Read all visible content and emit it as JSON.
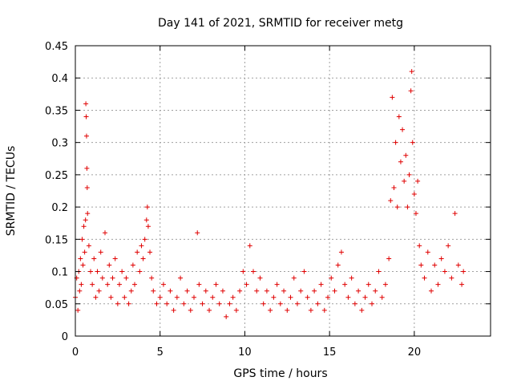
{
  "chart_data": {
    "type": "scatter",
    "title": "Day 141 of 2021, SRMTID for receiver metg",
    "xlabel": "GPS time / hours",
    "ylabel": "SRMTID / TECUs",
    "xlim": [
      0,
      24.5
    ],
    "ylim": [
      0,
      0.45
    ],
    "xticks": [
      0,
      5,
      10,
      15,
      20
    ],
    "xtick_labels": [
      "0",
      "5",
      "10",
      "15",
      "20"
    ],
    "yticks": [
      0,
      0.05,
      0.1,
      0.15,
      0.2,
      0.25,
      0.3,
      0.35,
      0.4,
      0.45
    ],
    "ytick_labels": [
      "0",
      "0.05",
      "0.1",
      "0.15",
      "0.2",
      "0.25",
      "0.3",
      "0.35",
      "0.4",
      "0.45"
    ],
    "grid": true,
    "marker": "+",
    "color": "#e00000",
    "series": [
      {
        "name": "SRMTID",
        "points": [
          [
            0.0,
            0.06
          ],
          [
            0.08,
            0.09
          ],
          [
            0.15,
            0.04
          ],
          [
            0.2,
            0.1
          ],
          [
            0.25,
            0.07
          ],
          [
            0.3,
            0.12
          ],
          [
            0.35,
            0.08
          ],
          [
            0.4,
            0.15
          ],
          [
            0.45,
            0.11
          ],
          [
            0.5,
            0.17
          ],
          [
            0.55,
            0.13
          ],
          [
            0.6,
            0.18
          ],
          [
            0.62,
            0.36
          ],
          [
            0.64,
            0.34
          ],
          [
            0.66,
            0.31
          ],
          [
            0.68,
            0.26
          ],
          [
            0.7,
            0.23
          ],
          [
            0.72,
            0.19
          ],
          [
            0.8,
            0.14
          ],
          [
            0.9,
            0.1
          ],
          [
            1.0,
            0.08
          ],
          [
            1.1,
            0.12
          ],
          [
            1.2,
            0.06
          ],
          [
            1.3,
            0.1
          ],
          [
            1.4,
            0.07
          ],
          [
            1.5,
            0.13
          ],
          [
            1.6,
            0.09
          ],
          [
            1.75,
            0.16
          ],
          [
            1.9,
            0.08
          ],
          [
            2.0,
            0.11
          ],
          [
            2.1,
            0.06
          ],
          [
            2.2,
            0.09
          ],
          [
            2.35,
            0.12
          ],
          [
            2.5,
            0.05
          ],
          [
            2.6,
            0.08
          ],
          [
            2.75,
            0.1
          ],
          [
            2.9,
            0.06
          ],
          [
            3.0,
            0.09
          ],
          [
            3.15,
            0.05
          ],
          [
            3.3,
            0.07
          ],
          [
            3.4,
            0.11
          ],
          [
            3.5,
            0.08
          ],
          [
            3.65,
            0.13
          ],
          [
            3.8,
            0.1
          ],
          [
            3.9,
            0.14
          ],
          [
            4.0,
            0.12
          ],
          [
            4.1,
            0.15
          ],
          [
            4.2,
            0.18
          ],
          [
            4.25,
            0.2
          ],
          [
            4.3,
            0.17
          ],
          [
            4.4,
            0.13
          ],
          [
            4.5,
            0.09
          ],
          [
            4.6,
            0.07
          ],
          [
            4.8,
            0.05
          ],
          [
            5.0,
            0.06
          ],
          [
            5.2,
            0.08
          ],
          [
            5.4,
            0.05
          ],
          [
            5.6,
            0.07
          ],
          [
            5.8,
            0.04
          ],
          [
            6.0,
            0.06
          ],
          [
            6.2,
            0.09
          ],
          [
            6.4,
            0.05
          ],
          [
            6.6,
            0.07
          ],
          [
            6.8,
            0.04
          ],
          [
            7.0,
            0.06
          ],
          [
            7.2,
            0.16
          ],
          [
            7.3,
            0.08
          ],
          [
            7.5,
            0.05
          ],
          [
            7.7,
            0.07
          ],
          [
            7.9,
            0.04
          ],
          [
            8.1,
            0.06
          ],
          [
            8.3,
            0.08
          ],
          [
            8.5,
            0.05
          ],
          [
            8.7,
            0.07
          ],
          [
            8.9,
            0.03
          ],
          [
            9.1,
            0.05
          ],
          [
            9.3,
            0.06
          ],
          [
            9.5,
            0.04
          ],
          [
            9.7,
            0.07
          ],
          [
            9.9,
            0.1
          ],
          [
            10.1,
            0.08
          ],
          [
            10.3,
            0.14
          ],
          [
            10.5,
            0.1
          ],
          [
            10.7,
            0.07
          ],
          [
            10.9,
            0.09
          ],
          [
            11.1,
            0.05
          ],
          [
            11.3,
            0.07
          ],
          [
            11.5,
            0.04
          ],
          [
            11.7,
            0.06
          ],
          [
            11.9,
            0.08
          ],
          [
            12.1,
            0.05
          ],
          [
            12.3,
            0.07
          ],
          [
            12.5,
            0.04
          ],
          [
            12.7,
            0.06
          ],
          [
            12.9,
            0.09
          ],
          [
            13.1,
            0.05
          ],
          [
            13.3,
            0.07
          ],
          [
            13.5,
            0.1
          ],
          [
            13.7,
            0.06
          ],
          [
            13.9,
            0.04
          ],
          [
            14.1,
            0.07
          ],
          [
            14.3,
            0.05
          ],
          [
            14.5,
            0.08
          ],
          [
            14.7,
            0.04
          ],
          [
            14.9,
            0.06
          ],
          [
            15.1,
            0.09
          ],
          [
            15.3,
            0.07
          ],
          [
            15.5,
            0.11
          ],
          [
            15.7,
            0.13
          ],
          [
            15.9,
            0.08
          ],
          [
            16.1,
            0.06
          ],
          [
            16.3,
            0.09
          ],
          [
            16.5,
            0.05
          ],
          [
            16.7,
            0.07
          ],
          [
            16.9,
            0.04
          ],
          [
            17.1,
            0.06
          ],
          [
            17.3,
            0.08
          ],
          [
            17.5,
            0.05
          ],
          [
            17.7,
            0.07
          ],
          [
            17.9,
            0.1
          ],
          [
            18.1,
            0.06
          ],
          [
            18.3,
            0.08
          ],
          [
            18.5,
            0.12
          ],
          [
            18.6,
            0.21
          ],
          [
            18.7,
            0.37
          ],
          [
            18.8,
            0.23
          ],
          [
            18.9,
            0.3
          ],
          [
            19.0,
            0.2
          ],
          [
            19.1,
            0.34
          ],
          [
            19.2,
            0.27
          ],
          [
            19.3,
            0.32
          ],
          [
            19.4,
            0.24
          ],
          [
            19.5,
            0.28
          ],
          [
            19.6,
            0.2
          ],
          [
            19.7,
            0.25
          ],
          [
            19.8,
            0.38
          ],
          [
            19.85,
            0.41
          ],
          [
            19.9,
            0.3
          ],
          [
            20.0,
            0.22
          ],
          [
            20.1,
            0.19
          ],
          [
            20.2,
            0.24
          ],
          [
            20.3,
            0.14
          ],
          [
            20.4,
            0.11
          ],
          [
            20.6,
            0.09
          ],
          [
            20.8,
            0.13
          ],
          [
            21.0,
            0.07
          ],
          [
            21.2,
            0.11
          ],
          [
            21.4,
            0.08
          ],
          [
            21.6,
            0.12
          ],
          [
            21.8,
            0.1
          ],
          [
            22.0,
            0.14
          ],
          [
            22.2,
            0.09
          ],
          [
            22.4,
            0.19
          ],
          [
            22.6,
            0.11
          ],
          [
            22.8,
            0.08
          ],
          [
            22.9,
            0.1
          ]
        ]
      }
    ]
  }
}
